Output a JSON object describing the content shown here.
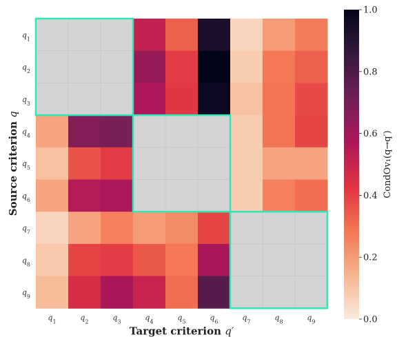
{
  "chart_data": {
    "type": "heatmap",
    "xlabel": "Target criterion",
    "xlabel_var": "q′",
    "ylabel": "Source criterion",
    "ylabel_var": "q",
    "x_categories": [
      "q1",
      "q2",
      "q3",
      "q4",
      "q5",
      "q6",
      "q7",
      "q8",
      "q9"
    ],
    "y_categories": [
      "q1",
      "q2",
      "q3",
      "q4",
      "q5",
      "q6",
      "q7",
      "q8",
      "q9"
    ],
    "values": [
      [
        null,
        null,
        null,
        0.52,
        0.33,
        0.93,
        0.06,
        0.2,
        0.27
      ],
      [
        null,
        null,
        null,
        0.62,
        0.41,
        1.0,
        0.08,
        0.28,
        0.33
      ],
      [
        null,
        null,
        null,
        0.57,
        0.42,
        0.97,
        0.11,
        0.29,
        0.38
      ],
      [
        0.18,
        0.67,
        0.69,
        null,
        null,
        null,
        0.08,
        0.29,
        0.39
      ],
      [
        0.11,
        0.36,
        0.41,
        null,
        null,
        null,
        0.08,
        0.18,
        0.18
      ],
      [
        0.18,
        0.55,
        0.57,
        null,
        null,
        null,
        0.08,
        0.26,
        0.3
      ],
      [
        0.06,
        0.18,
        0.26,
        0.2,
        0.24,
        0.39,
        null,
        null,
        null
      ],
      [
        0.09,
        0.39,
        0.41,
        0.35,
        0.28,
        0.58,
        null,
        null,
        null
      ],
      [
        0.12,
        0.46,
        0.58,
        0.5,
        0.3,
        0.78,
        null,
        null,
        null
      ]
    ],
    "masked_blocks": [
      {
        "rows": [
          0,
          2
        ],
        "cols": [
          0,
          2
        ]
      },
      {
        "rows": [
          3,
          5
        ],
        "cols": [
          3,
          5
        ]
      },
      {
        "rows": [
          6,
          8
        ],
        "cols": [
          6,
          8
        ]
      }
    ],
    "masked_color": "#d4d4d4",
    "block_outline_color": "#2ee6b6",
    "colorbar": {
      "label": "CondOv₁(q→q′)",
      "range": [
        0.0,
        1.0
      ],
      "ticks": [
        "0.0",
        "0.2",
        "0.4",
        "0.6",
        "0.8",
        "1.0"
      ],
      "colormap": "rocket_r",
      "stops": [
        "#faebdd",
        "#f6b48f",
        "#f37651",
        "#e13342",
        "#ad1759",
        "#701f57",
        "#35193e",
        "#03051a"
      ]
    }
  }
}
